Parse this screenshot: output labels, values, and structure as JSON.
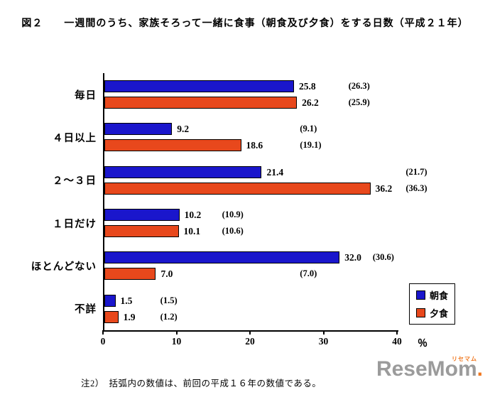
{
  "title": "図２　　一週間のうち、家族そろって一緒に食事（朝食及び夕食）をする日数（平成２１年）",
  "footnote": "注2）　括弧内の数値は、前回の平成１６年の数値である。",
  "watermark": {
    "text": "ReseMom",
    "dot": ".",
    "ruby": "リセマム"
  },
  "chart_data": {
    "type": "bar",
    "orientation": "horizontal",
    "title": "一週間のうち、家族そろって一緒に食事（朝食及び夕食）をする日数（平成２１年）",
    "categories": [
      "毎日",
      "４日以上",
      "２～３日",
      "１日だけ",
      "ほとんどない",
      "不詳"
    ],
    "series": [
      {
        "name": "朝食",
        "color": "#1a16cc",
        "values": [
          25.8,
          9.2,
          21.4,
          10.2,
          32.0,
          1.5
        ],
        "prev_values": [
          26.3,
          9.1,
          21.7,
          10.9,
          30.6,
          1.5
        ]
      },
      {
        "name": "夕食",
        "color": "#e8481c",
        "values": [
          26.2,
          18.6,
          36.2,
          10.1,
          7.0,
          1.9
        ],
        "prev_values": [
          25.9,
          19.1,
          36.3,
          10.6,
          7.0,
          1.2
        ]
      }
    ],
    "xlim": [
      0,
      40
    ],
    "xticks": [
      0,
      10,
      20,
      30,
      40
    ],
    "x_unit": "％",
    "legend_position": "bottom-right",
    "grid": false,
    "note": "括弧内の数値は前回（平成１６年）の数値"
  }
}
